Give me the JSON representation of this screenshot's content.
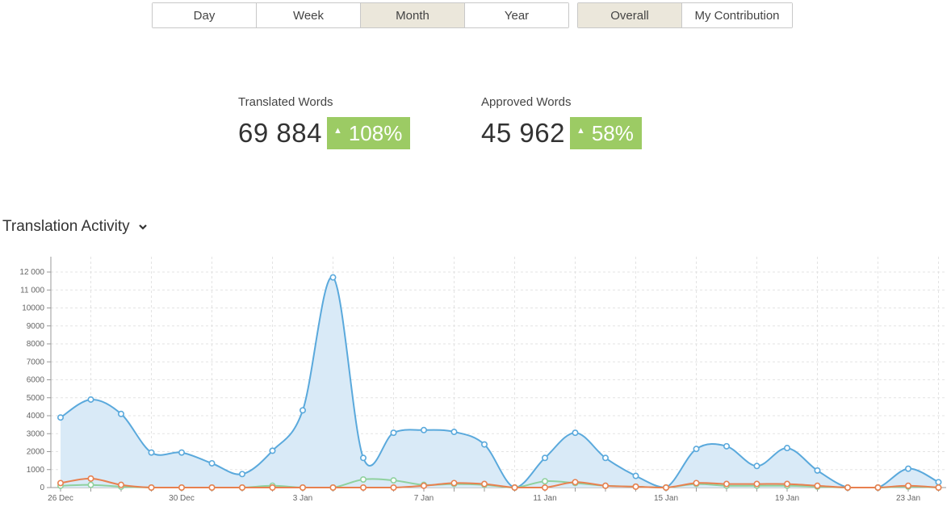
{
  "period_toggle": {
    "options": [
      "Day",
      "Week",
      "Month",
      "Year"
    ],
    "selected": "Month"
  },
  "scope_toggle": {
    "options": [
      "Overall",
      "My Contribution"
    ],
    "selected": "Overall"
  },
  "stats": {
    "translated": {
      "label": "Translated Words",
      "value": "69 884",
      "change": "108%"
    },
    "approved": {
      "label": "Approved Words",
      "value": "45 962",
      "change": "58%"
    }
  },
  "section": {
    "title": "Translation Activity"
  },
  "colors": {
    "translated": "#5aa9dc",
    "translated_fill": "#d9eaf7",
    "approved": "#e8804f",
    "green": "#8fd19e",
    "badge": "#9ccb64",
    "active_button": "#ebe7db"
  },
  "chart_data": {
    "type": "area",
    "x": [
      "26 Dec",
      "27 Dec",
      "28 Dec",
      "29 Dec",
      "30 Dec",
      "31 Dec",
      "1 Jan",
      "2 Jan",
      "3 Jan",
      "4 Jan",
      "5 Jan",
      "6 Jan",
      "7 Jan",
      "8 Jan",
      "9 Jan",
      "10 Jan",
      "11 Jan",
      "12 Jan",
      "13 Jan",
      "14 Jan",
      "15 Jan",
      "16 Jan",
      "17 Jan",
      "18 Jan",
      "19 Jan",
      "20 Jan",
      "21 Jan",
      "22 Jan",
      "23 Jan",
      "24 Jan"
    ],
    "x_tick_labels": [
      "26 Dec",
      "30 Dec",
      "3 Jan",
      "7 Jan",
      "11 Jan",
      "15 Jan",
      "19 Jan",
      "23 Jan"
    ],
    "y_tick_labels": [
      "0",
      "1000",
      "2000",
      "3000",
      "4000",
      "5000",
      "6000",
      "7000",
      "8000",
      "9000",
      "10000",
      "11 000",
      "12 000"
    ],
    "ylim": [
      0,
      12000
    ],
    "grid": true,
    "series": [
      {
        "color": "#5aa9dc",
        "fill": true,
        "values": [
          3900,
          4900,
          4100,
          1950,
          1950,
          1350,
          750,
          2050,
          4300,
          11700,
          1650,
          3050,
          3200,
          3100,
          2400,
          0,
          1650,
          3050,
          1650,
          650,
          0,
          2150,
          2300,
          1200,
          2200,
          950,
          0,
          0,
          1050,
          300
        ]
      },
      {
        "color": "#8fd19e",
        "fill": false,
        "values": [
          100,
          150,
          50,
          0,
          0,
          0,
          0,
          100,
          0,
          0,
          450,
          400,
          150,
          200,
          150,
          0,
          350,
          250,
          100,
          50,
          0,
          200,
          100,
          100,
          100,
          50,
          0,
          0,
          50,
          0
        ]
      },
      {
        "color": "#e8804f",
        "fill": false,
        "values": [
          250,
          500,
          150,
          0,
          0,
          0,
          0,
          0,
          0,
          0,
          0,
          0,
          100,
          250,
          200,
          0,
          0,
          300,
          100,
          50,
          0,
          250,
          200,
          200,
          200,
          100,
          0,
          0,
          100,
          0
        ]
      }
    ]
  }
}
